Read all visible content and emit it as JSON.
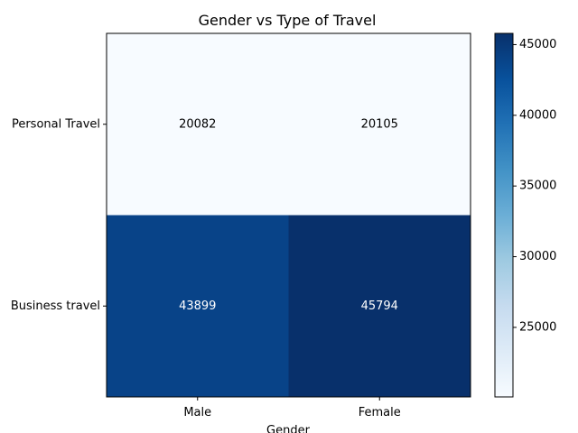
{
  "chart_data": {
    "type": "heatmap",
    "title": "Gender vs Type of Travel",
    "xlabel": "Gender",
    "ylabel": "",
    "x_categories": [
      "Male",
      "Female"
    ],
    "y_categories": [
      "Personal Travel",
      "Business travel"
    ],
    "values": [
      [
        20082,
        20105
      ],
      [
        43899,
        45794
      ]
    ],
    "colormap": "Blues",
    "colorbar": {
      "min": 20082,
      "max": 45794,
      "ticks": [
        25000,
        30000,
        35000,
        40000,
        45000
      ],
      "tick_labels": [
        "25000",
        "30000",
        "35000",
        "40000",
        "45000"
      ]
    },
    "cell_text_colors": {
      "light": "#000000",
      "dark": "#ffffff"
    }
  }
}
